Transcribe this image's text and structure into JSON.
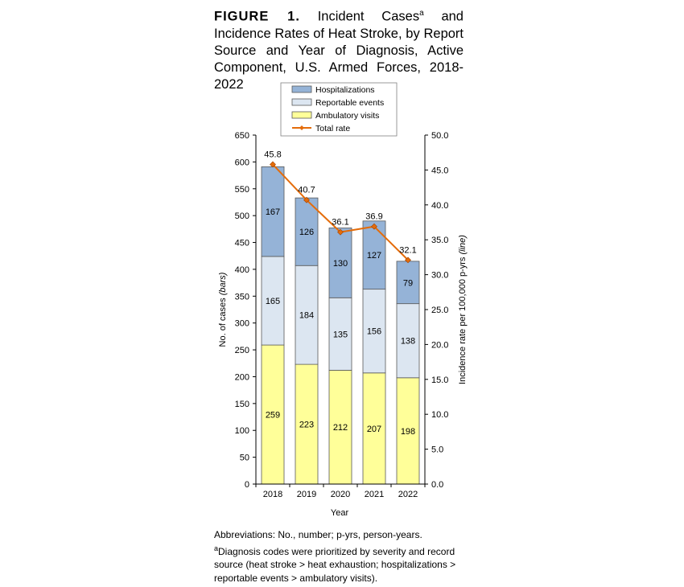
{
  "figure": {
    "label": "FIGURE 1.",
    "title_text": "Incident Cases",
    "title_sup": "a",
    "title_rest": " and Incidence Rates of Heat Stroke, by Report Source and Year of Diagnosis, Active Component, U.S. Armed Forces, 2018-2022"
  },
  "footnotes": {
    "abbreviations": "Abbreviations: No., number; p-yrs, person-years.",
    "note_sup": "a",
    "note_text": "Diagnosis codes were prioritized by severity and record source (heat stroke > heat exhaustion; hospitalizations > reportable events > ambulatory visits)."
  },
  "colors": {
    "hospitalizations": "#95B3D7",
    "reportable": "#DCE6F1",
    "ambulatory": "#FFFF99",
    "rate_line": "#E46C0A",
    "bar_stroke": "#595959"
  },
  "chart_data": {
    "type": "bar",
    "stacked": true,
    "categories": [
      "2018",
      "2019",
      "2020",
      "2021",
      "2022"
    ],
    "series": [
      {
        "name": "Ambulatory visits",
        "values": [
          259,
          223,
          212,
          207,
          198
        ]
      },
      {
        "name": "Reportable events",
        "values": [
          165,
          184,
          135,
          156,
          138
        ]
      },
      {
        "name": "Hospitalizations",
        "values": [
          167,
          126,
          130,
          127,
          79
        ]
      }
    ],
    "line_series": {
      "name": "Total rate",
      "values": [
        45.8,
        40.7,
        36.1,
        36.9,
        32.1
      ]
    },
    "legend_order": [
      "Hospitalizations",
      "Reportable events",
      "Ambulatory visits",
      "Total rate"
    ],
    "xlabel": "Year",
    "ylabel": "No. of cases (bars)",
    "ylabel_right": "Incidence rate per 100,000 p-yrs (line)",
    "ylim": [
      0,
      650
    ],
    "yticks": [
      0,
      50,
      100,
      150,
      200,
      250,
      300,
      350,
      400,
      450,
      500,
      550,
      600,
      650
    ],
    "ylim_right": [
      0,
      50
    ],
    "yticks_right": [
      "0.0",
      "5.0",
      "10.0",
      "15.0",
      "20.0",
      "25.0",
      "30.0",
      "35.0",
      "40.0",
      "45.0",
      "50.0"
    ],
    "grid": false,
    "legend_position": "top"
  }
}
